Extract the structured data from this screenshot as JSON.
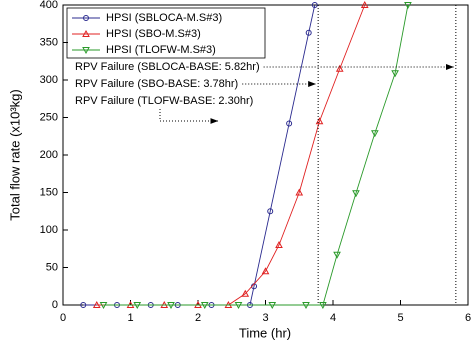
{
  "chart_data": {
    "type": "line",
    "xlabel": "Time (hr)",
    "ylabel": "Total flow rate (x10³kg)",
    "xlim": [
      0,
      6
    ],
    "ylim": [
      0,
      400
    ],
    "xticks": [
      0,
      1,
      2,
      3,
      4,
      5,
      6
    ],
    "yticks": [
      0,
      50,
      100,
      150,
      200,
      250,
      300,
      350,
      400
    ],
    "legend": "upper left",
    "series": [
      {
        "name": "HPSI (SBLOCA-M.S#3)",
        "color": "#2b2b8f",
        "marker": "circle",
        "x": [
          0.3,
          0.8,
          1.3,
          1.7,
          2.2,
          2.77,
          2.83,
          3.07,
          3.35,
          3.64,
          3.73
        ],
        "values": [
          0,
          0,
          0,
          0,
          0,
          0,
          25,
          125,
          242,
          363,
          400
        ]
      },
      {
        "name": "HPSI (SBO-M.S#3)",
        "color": "#e02020",
        "marker": "triangle",
        "x": [
          0.5,
          1.0,
          1.5,
          2.0,
          2.45,
          2.7,
          3.0,
          3.2,
          3.5,
          3.8,
          4.1,
          4.47
        ],
        "values": [
          0,
          0,
          0,
          0,
          0,
          15,
          45,
          80,
          150,
          245,
          315,
          400
        ]
      },
      {
        "name": "HPSI (TLOFW-M.S#3)",
        "color": "#2a9a2a",
        "marker": "triangle-down",
        "x": [
          0.6,
          1.1,
          1.6,
          2.1,
          2.6,
          3.1,
          3.6,
          3.85,
          4.06,
          4.34,
          4.62,
          4.92,
          5.11
        ],
        "values": [
          0,
          0,
          0,
          0,
          0,
          0,
          0,
          0,
          67,
          149,
          229,
          309,
          400
        ]
      }
    ],
    "annotations": [
      {
        "text": "RPV Failure (SBLOCA-BASE: 5.82hr)",
        "x": 5.82,
        "vline": true
      },
      {
        "text": "RPV Failure (SBO-BASE: 3.78hr)",
        "x": 3.78,
        "vline": true
      },
      {
        "text": "RPV Failure (TLOFW-BASE: 2.30hr)",
        "x": 2.3,
        "vline": false
      }
    ]
  }
}
